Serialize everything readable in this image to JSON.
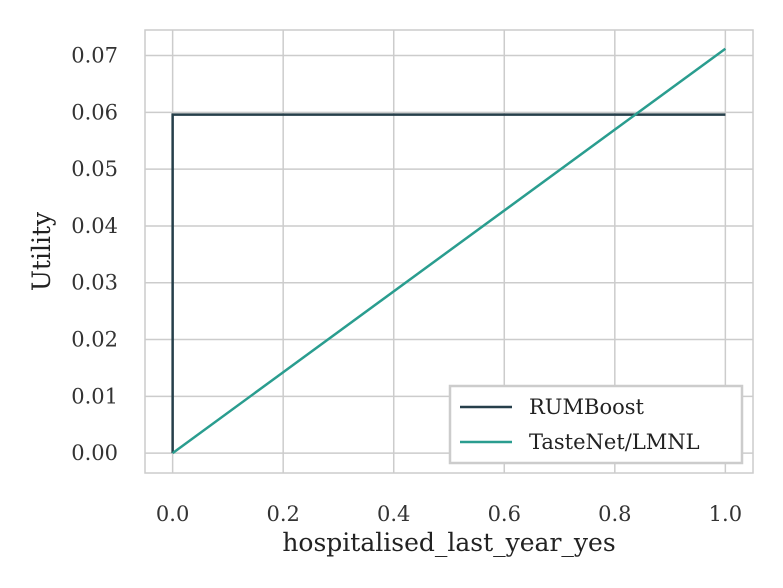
{
  "chart_data": {
    "type": "line",
    "xlabel": "hospitalised_last_year_yes",
    "ylabel": "Utility",
    "xlim": [
      -0.05,
      1.05
    ],
    "ylim": [
      -0.0035,
      0.0745
    ],
    "x_ticks": [
      0.0,
      0.2,
      0.4,
      0.6,
      0.8,
      1.0
    ],
    "x_tick_labels": [
      "0.0",
      "0.2",
      "0.4",
      "0.6",
      "0.8",
      "1.0"
    ],
    "y_ticks": [
      0.0,
      0.01,
      0.02,
      0.03,
      0.04,
      0.05,
      0.06,
      0.07
    ],
    "y_tick_labels": [
      "0.00",
      "0.01",
      "0.02",
      "0.03",
      "0.04",
      "0.05",
      "0.06",
      "0.07"
    ],
    "grid": true,
    "legend_position": "lower right",
    "series": [
      {
        "name": "RUMBoost",
        "color": "#263f4a",
        "points": [
          [
            0.0,
            0.0
          ],
          [
            0.0,
            0.0596
          ],
          [
            1.0,
            0.0596
          ]
        ]
      },
      {
        "name": "TasteNet/LMNL",
        "color": "#2a9d8f",
        "points": [
          [
            0.0,
            0.0
          ],
          [
            1.0,
            0.0712
          ]
        ]
      }
    ]
  }
}
